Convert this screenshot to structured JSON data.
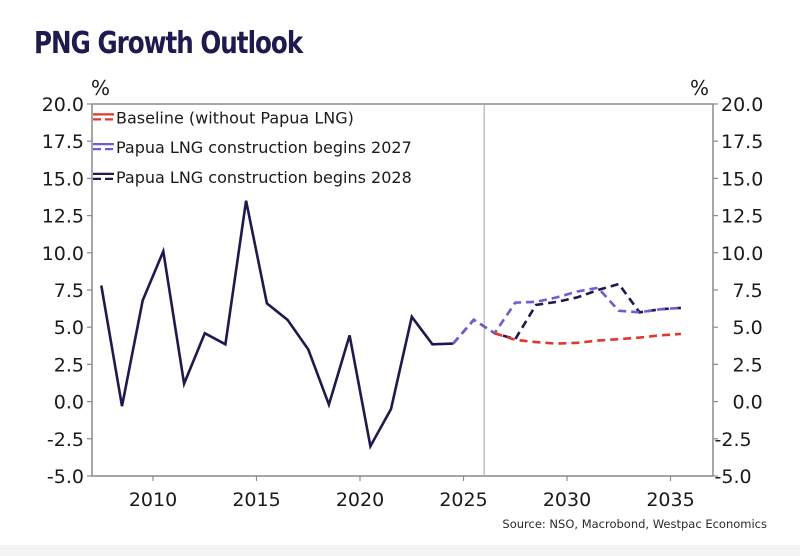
{
  "title": "PNG Growth Outlook",
  "source": "Source: NSO, Macrobond, Westpac Economics",
  "colors": {
    "history": "#1e1a4d",
    "baseline": "#e0382e",
    "scenario_2027": "#6a5fcf",
    "scenario_2028": "#1e1a4d",
    "axis": "#8a8a8a",
    "title": "#1e1a4d"
  },
  "chart_data": {
    "type": "line",
    "title": "PNG Growth Outlook",
    "xlabel": "",
    "ylabel_left": "%",
    "ylabel_right": "%",
    "xlim": [
      2007,
      2037
    ],
    "ylim": [
      -5.0,
      20.0
    ],
    "x_ticks": [
      2010,
      2015,
      2020,
      2025,
      2030,
      2035
    ],
    "y_ticks": [
      "20.0",
      "17.5",
      "15.0",
      "12.5",
      "10.0",
      "7.5",
      "5.0",
      "2.5",
      "0.0",
      "-2.5",
      "-5.0"
    ],
    "y_tick_values": [
      20,
      17.5,
      15,
      12.5,
      10,
      7.5,
      5,
      2.5,
      0,
      -2.5,
      -5
    ],
    "forecast_divider_x": 2026.0,
    "grid": false,
    "legend_position": "top-left",
    "series": [
      {
        "name": "History",
        "in_legend": false,
        "style": "solid",
        "color_key": "history",
        "x": [
          2007.5,
          2008.5,
          2009.5,
          2010.5,
          2011.5,
          2012.5,
          2013.5,
          2014.5,
          2015.5,
          2016.5,
          2017.5,
          2018.5,
          2019.5,
          2020.5,
          2021.5,
          2022.5,
          2023.5,
          2024.5
        ],
        "values": [
          7.8,
          -0.3,
          6.8,
          10.1,
          1.2,
          4.6,
          3.85,
          13.5,
          6.6,
          5.5,
          3.5,
          -0.2,
          4.45,
          -3.0,
          -0.5,
          5.7,
          3.85,
          3.9
        ]
      },
      {
        "name": "Papua LNG construction begins 2028",
        "in_legend": true,
        "style": "dashed",
        "color_key": "scenario_2028",
        "x": [
          2024.5,
          2025.5,
          2026.5,
          2027.5,
          2028.5,
          2029.5,
          2030.5,
          2031.5,
          2032.5,
          2033.5,
          2034.5,
          2035.5
        ],
        "values": [
          3.9,
          5.5,
          4.6,
          4.2,
          6.5,
          6.7,
          7.0,
          7.5,
          7.9,
          6.0,
          6.2,
          6.3
        ]
      },
      {
        "name": "Papua LNG construction begins 2027",
        "in_legend": true,
        "style": "dashed",
        "color_key": "scenario_2027",
        "x": [
          2024.5,
          2025.5,
          2026.5,
          2027.5,
          2028.5,
          2029.5,
          2030.5,
          2031.5,
          2032.5,
          2033.5,
          2034.5,
          2035.5
        ],
        "values": [
          3.9,
          5.5,
          4.6,
          6.65,
          6.7,
          7.0,
          7.4,
          7.65,
          6.1,
          6.0,
          6.2,
          6.3
        ]
      },
      {
        "name": "Baseline (without Papua LNG)",
        "in_legend": true,
        "style": "dashed",
        "color_key": "baseline",
        "x": [
          2026.5,
          2027.5,
          2028.5,
          2029.5,
          2030.5,
          2031.5,
          2032.5,
          2033.5,
          2034.5,
          2035.5
        ],
        "values": [
          4.6,
          4.15,
          4.0,
          3.9,
          3.95,
          4.1,
          4.2,
          4.3,
          4.45,
          4.55
        ]
      }
    ],
    "legend": [
      {
        "label": "Baseline (without Papua LNG)",
        "color_key": "baseline"
      },
      {
        "label": "Papua LNG construction begins 2027",
        "color_key": "scenario_2027"
      },
      {
        "label": "Papua LNG construction begins 2028",
        "color_key": "scenario_2028"
      }
    ]
  }
}
